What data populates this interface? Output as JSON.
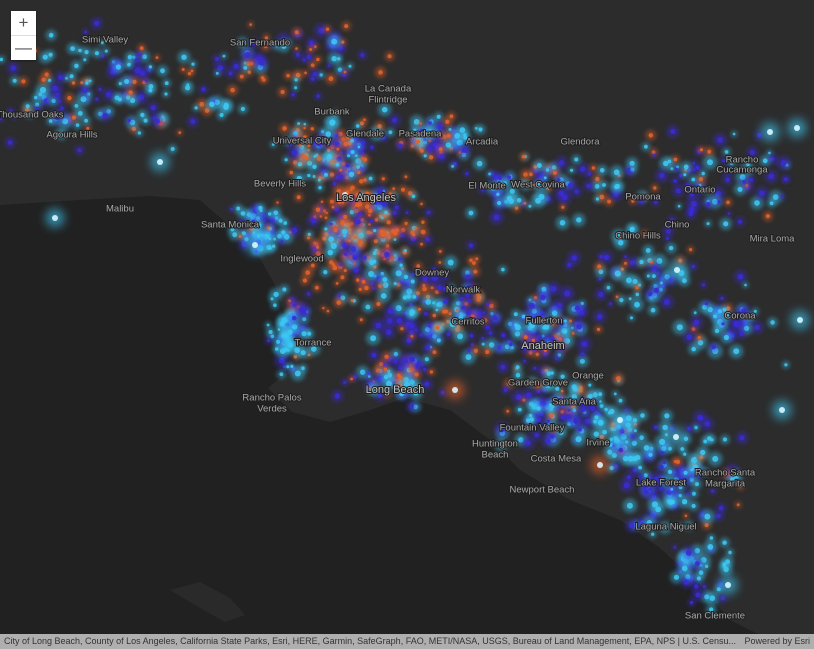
{
  "map": {
    "controls": {
      "zoom_in": "+",
      "zoom_out": "—"
    },
    "places": [
      "Simi Valley",
      "San Fernando",
      "Thousand Oaks",
      "Agoura Hills",
      "Burbank",
      "La Canada",
      "Flintridge",
      "Glendale",
      "Pasadena",
      "Universal City",
      "Arcadia",
      "Glendora",
      "Rancho",
      "Cucamonga",
      "Beverly Hills",
      "Los Angeles",
      "El Monte",
      "West Covina",
      "Ontario",
      "Pomona",
      "Malibu",
      "Santa Monica",
      "Chino Hills",
      "Chino",
      "Mira Loma",
      "Inglewood",
      "Downey",
      "Norwalk",
      "Corona",
      "Torrance",
      "Cerritos",
      "Fullerton",
      "Anaheim",
      "Orange",
      "Garden Grove",
      "Long Beach",
      "Rancho Palos",
      "Verdes",
      "Santa Ana",
      "Fountain Valley",
      "Irvine",
      "Huntington",
      "Beach",
      "Costa Mesa",
      "Rancho Santa",
      "Margarita",
      "Lake Forest",
      "Newport Beach",
      "Laguna Niguel",
      "San Clemente"
    ],
    "attribution": "City of Long Beach, County of Los Angeles, California State Parks, Esri, HERE, Garmin, SafeGraph, FAO, METI/NASA, USGS, Bureau of Land Management, EPA, NPS | U.S. Censu...",
    "powered_by": "Powered by Esri"
  }
}
